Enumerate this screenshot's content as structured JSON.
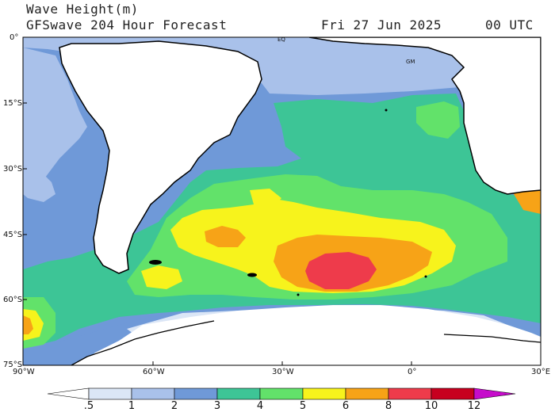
{
  "header": {
    "line1": "Wave Height(m)",
    "line2": "GFSwave 204 Hour Forecast",
    "date": "Fri 27 Jun 2025",
    "time": "00 UTC"
  },
  "map": {
    "lat_labels": [
      "0°",
      "15°S",
      "30°S",
      "45°S",
      "60°S",
      "75°S"
    ],
    "lon_labels": [
      "90°W",
      "60°W",
      "30°W",
      "0°",
      "30°E"
    ],
    "markers": [
      "EQ",
      "GM"
    ]
  },
  "colorbar": {
    "labels": [
      ".5",
      "1",
      "2",
      "3",
      "4",
      "5",
      "6",
      "8",
      "10",
      "12"
    ],
    "colors": [
      "#ffffff",
      "#dbe6f6",
      "#a9c1ea",
      "#6f99d8",
      "#3dc596",
      "#62e26a",
      "#f7f31c",
      "#f7a317",
      "#ee3b4b",
      "#c7001f",
      "#c60ccb"
    ]
  },
  "palette": {
    "land": "#ffffff",
    "ice": "#ffffff",
    "coast": "#000000"
  }
}
